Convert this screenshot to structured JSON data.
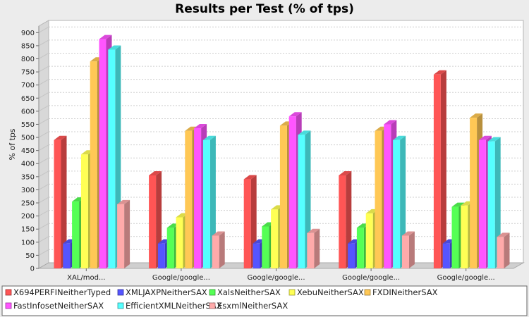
{
  "chart_data": {
    "type": "bar",
    "title": "Results per Test (% of tps)",
    "xlabel": "",
    "ylabel": "% of tps",
    "ylim": [
      0,
      925
    ],
    "yticks": [
      0,
      50,
      100,
      150,
      200,
      250,
      300,
      350,
      400,
      450,
      500,
      550,
      600,
      650,
      700,
      750,
      800,
      850,
      900
    ],
    "grid": true,
    "legend_position": "bottom",
    "categories": [
      "XAL/mod...",
      "Google/google...",
      "Google/google...",
      "Google/google...",
      "Google/google..."
    ],
    "series": [
      {
        "name": "X694PERFINeitherTyped",
        "color": "#ff5555",
        "values": [
          490,
          355,
          340,
          355,
          740
        ]
      },
      {
        "name": "XMLJAXPNeitherSAX",
        "color": "#5555ff",
        "values": [
          95,
          95,
          95,
          95,
          95
        ]
      },
      {
        "name": "XalsNeitherSAX",
        "color": "#55ff55",
        "values": [
          255,
          155,
          160,
          155,
          235
        ]
      },
      {
        "name": "XebuNeitherSAX",
        "color": "#ffff55",
        "values": [
          435,
          195,
          225,
          210,
          240
        ]
      },
      {
        "name": "FXDINeitherSAX",
        "color": "#ffc855",
        "values": [
          790,
          525,
          545,
          525,
          575
        ]
      },
      {
        "name": "FastInfosetNeitherSAX",
        "color": "#ff55ff",
        "values": [
          875,
          535,
          580,
          550,
          490
        ]
      },
      {
        "name": "EfficientXMLNeitherSAX",
        "color": "#55ffff",
        "values": [
          835,
          490,
          510,
          490,
          485
        ]
      },
      {
        "name": "EsxmlNeitherSAX",
        "color": "#ffaaaa",
        "values": [
          245,
          125,
          135,
          125,
          120
        ]
      }
    ]
  }
}
